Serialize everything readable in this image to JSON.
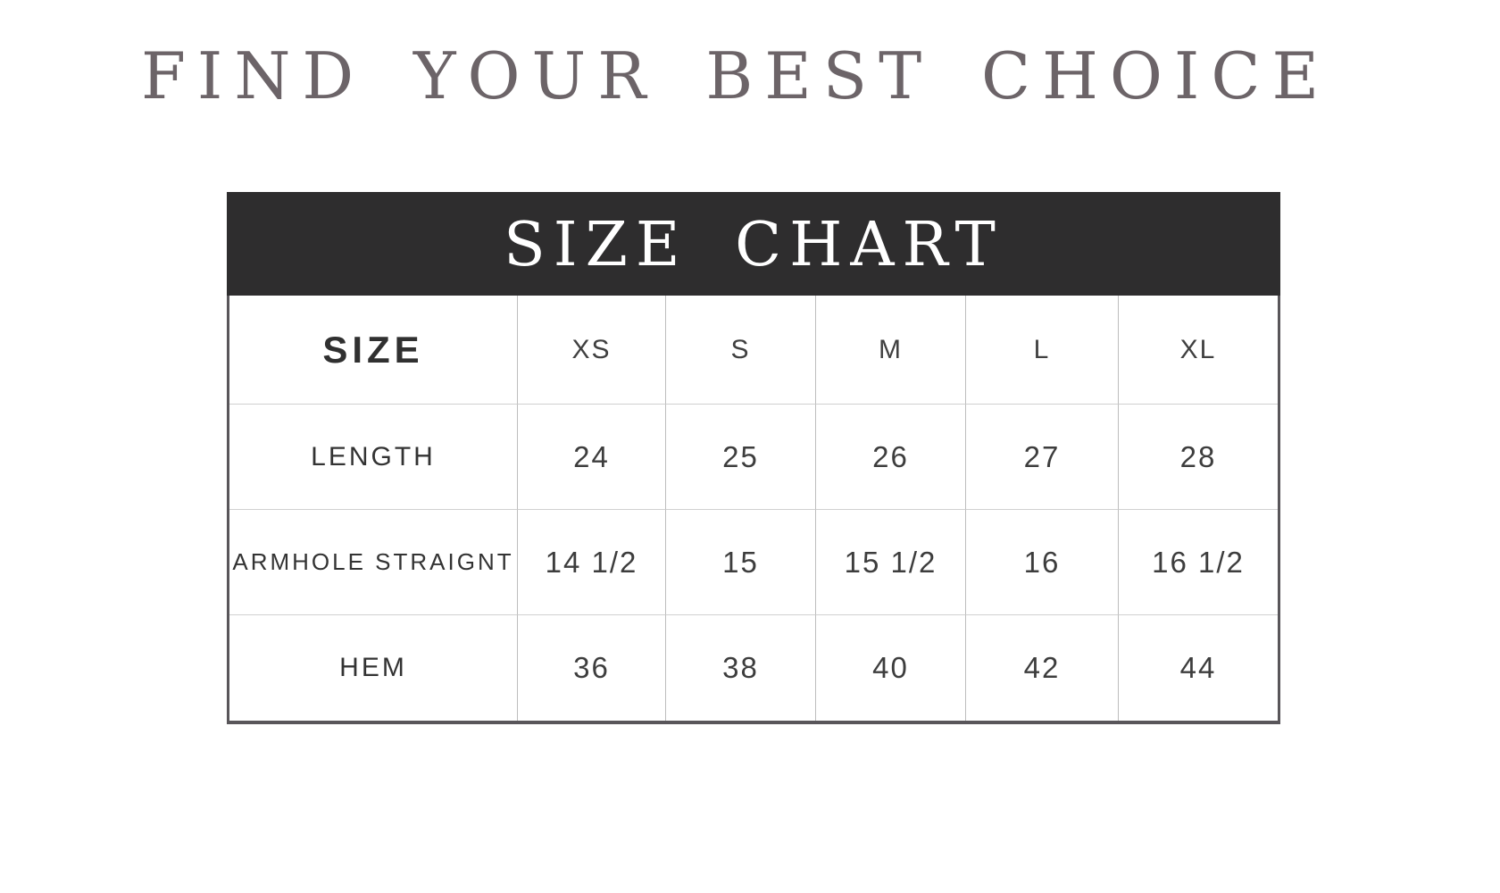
{
  "page": {
    "background": "#ffffff"
  },
  "title": {
    "text": "FIND YOUR BEST CHOICE",
    "color": "#6c6468"
  },
  "size_chart": {
    "banner": {
      "text": "SIZE CHART",
      "bg_color": "#2e2d2e",
      "text_color": "#ffffff"
    },
    "table": {
      "corner_label": "SIZE",
      "sizes": [
        "XS",
        "S",
        "M",
        "L",
        "XL"
      ],
      "rows": [
        {
          "label": "LENGTH",
          "values": [
            "24",
            "25",
            "26",
            "27",
            "28"
          ]
        },
        {
          "label": "ARMHOLE STRAIGNT",
          "values": [
            "14 1/2",
            "15",
            "15 1/2",
            "16",
            "16 1/2"
          ]
        },
        {
          "label": "HEM",
          "values": [
            "36",
            "38",
            "40",
            "42",
            "44"
          ]
        }
      ],
      "grid_line_color": "#bdbdbd",
      "outer_border_color": "#59565a"
    }
  },
  "chart_data": {
    "type": "table",
    "title": "SIZE CHART",
    "columns": [
      "SIZE",
      "XS",
      "S",
      "M",
      "L",
      "XL"
    ],
    "rows": [
      [
        "LENGTH",
        "24",
        "25",
        "26",
        "27",
        "28"
      ],
      [
        "ARMHOLE STRAIGNT",
        "14 1/2",
        "15",
        "15 1/2",
        "16",
        "16 1/2"
      ],
      [
        "HEM",
        "36",
        "38",
        "40",
        "42",
        "44"
      ]
    ]
  }
}
